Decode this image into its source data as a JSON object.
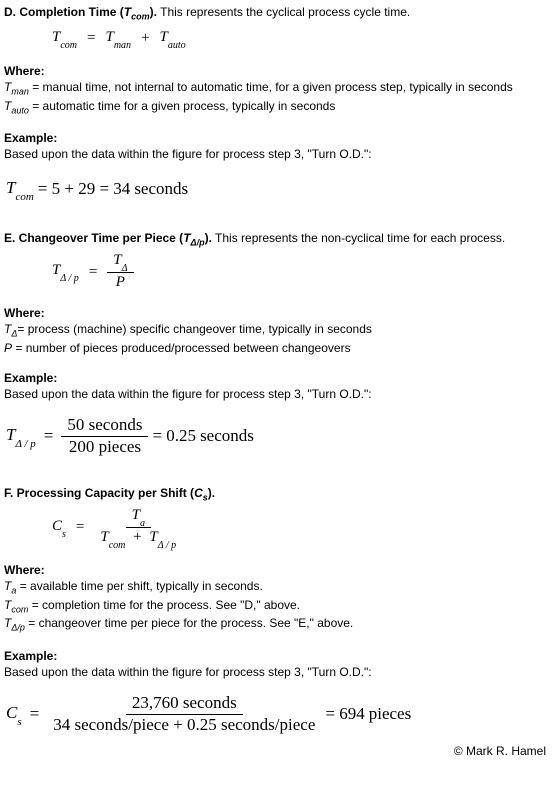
{
  "sectionD": {
    "heading_letter": "D. ",
    "heading_title": "Completion Time (",
    "heading_var": "T",
    "heading_sub": "com",
    "heading_close": ").",
    "heading_rest": " This represents the cyclical process cycle time.",
    "formula_lhs_var": "T",
    "formula_lhs_sub": "com",
    "eq": "=",
    "rhs1_var": "T",
    "rhs1_sub": "man",
    "plus": "+",
    "rhs2_var": "T",
    "rhs2_sub": "auto",
    "where_label": "Where:",
    "where1_var": "T",
    "where1_sub": "man",
    "where1_txt": " = manual time, not internal to automatic time, for a given process step, typically in seconds",
    "where2_var": "T",
    "where2_sub": "auto",
    "where2_txt": " = automatic time for a given process, typically in seconds",
    "example_label": "Example:",
    "example_txt": "Based upon the data within the figure for process step 3, \"Turn O.D.\":",
    "calc_lhs_var": "T",
    "calc_lhs_sub": "com",
    "calc_mid": "= 5 + 29 = 34",
    "calc_unit": "seconds"
  },
  "sectionE": {
    "heading_letter": "E. ",
    "heading_title": "Changeover Time per Piece (",
    "heading_var": "T",
    "heading_sub": "Δ/p",
    "heading_close": ").",
    "heading_rest": " This represents the non-cyclical time for each process.",
    "formula_lhs_var": "T",
    "formula_lhs_sub": "Δ / p",
    "eq": "=",
    "num_var": "T",
    "num_sub": "Δ",
    "den_var": "P",
    "where_label": "Where:",
    "where1_var": "T",
    "where1_sub": "Δ",
    "where1_txt": "= process (machine) specific changeover time, typically in seconds",
    "where2_var": "P",
    "where2_txt": " = number of pieces produced/processed between changeovers",
    "example_label": "Example:",
    "example_txt": "Based upon the data within the figure for process step 3, \"Turn O.D.\":",
    "calc_lhs_var": "T",
    "calc_lhs_sub": "Δ / p",
    "calc_num": "50 seconds",
    "calc_den": "200 pieces",
    "calc_rhs": "= 0.25",
    "calc_unit": "seconds"
  },
  "sectionF": {
    "heading_letter": "F. ",
    "heading_title": "Processing Capacity per Shift (",
    "heading_var": "C",
    "heading_sub": "s",
    "heading_close": ").",
    "formula_lhs_var": "C",
    "formula_lhs_sub": "s",
    "eq": "=",
    "num_var": "T",
    "num_sub": "a",
    "den1_var": "T",
    "den1_sub": "com",
    "plus": "+",
    "den2_var": "T",
    "den2_sub": "Δ / p",
    "where_label": "Where:",
    "where1_var": "T",
    "where1_sub": "a",
    "where1_txt": " = available time per shift, typically in seconds.",
    "where2_var": "T",
    "where2_sub": "com",
    "where2_txt": " = completion time for the process. See \"D,\" above.",
    "where3_var": "T",
    "where3_sub": "Δ/p",
    "where3_txt": " = changeover time per piece for the process. See \"E,\" above.",
    "example_label": "Example:",
    "example_txt": "Based upon the data within the figure for process step 3, \"Turn O.D.\":",
    "calc_lhs_var": "C",
    "calc_lhs_sub": "s",
    "calc_num": "23,760 seconds",
    "calc_den": "34 seconds/piece + 0.25 seconds/piece",
    "calc_rhs": "= 694",
    "calc_unit": "pieces"
  },
  "copyright": "© Mark R. Hamel"
}
